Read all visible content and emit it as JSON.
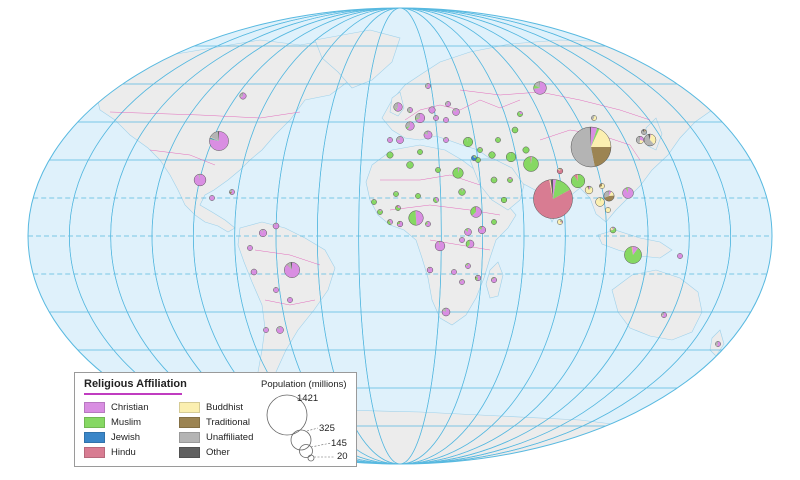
{
  "legend": {
    "title": "Religious Affiliation",
    "items": [
      {
        "label": "Christian",
        "color": "#d98ee2"
      },
      {
        "label": "Muslim",
        "color": "#86d863"
      },
      {
        "label": "Jewish",
        "color": "#3a86c8"
      },
      {
        "label": "Hindu",
        "color": "#d87c92"
      },
      {
        "label": "Buddhist",
        "color": "#fbefb0"
      },
      {
        "label": "Traditional",
        "color": "#9c8452"
      },
      {
        "label": "Unaffiliated",
        "color": "#b4b4b4"
      },
      {
        "label": "Other",
        "color": "#606060"
      }
    ],
    "population": {
      "title": "Population (millions)",
      "values": [
        "1421",
        "325",
        "145",
        "20"
      ]
    }
  },
  "colors": {
    "ocean": "#dff1fb",
    "land": "#ececec",
    "graticule": "#58b9e0",
    "border": "#e04cb0"
  },
  "pies": [
    {
      "name": "china",
      "pop": 1421,
      "shares": [
        0.05,
        0.02,
        0,
        0,
        0.18,
        0.22,
        0.52,
        0.01
      ]
    },
    {
      "name": "india",
      "pop": 1360,
      "shares": [
        0.025,
        0.145,
        0,
        0.8,
        0.01,
        0,
        0,
        0.02
      ]
    },
    {
      "name": "usa",
      "pop": 325,
      "shares": [
        0.78,
        0.01,
        0.02,
        0,
        0.01,
        0,
        0.16,
        0.02
      ]
    },
    {
      "name": "indonesia",
      "pop": 260,
      "shares": [
        0.1,
        0.87,
        0,
        0.02,
        0.01,
        0,
        0,
        0
      ]
    },
    {
      "name": "brazil",
      "pop": 210,
      "shares": [
        0.88,
        0,
        0,
        0,
        0,
        0.01,
        0.08,
        0.03
      ]
    },
    {
      "name": "pakistan",
      "pop": 200,
      "shares": [
        0.02,
        0.96,
        0,
        0.02,
        0,
        0,
        0,
        0
      ]
    },
    {
      "name": "nigeria",
      "pop": 190,
      "shares": [
        0.49,
        0.49,
        0,
        0,
        0,
        0.01,
        0.01,
        0
      ]
    },
    {
      "name": "bangladesh",
      "pop": 165,
      "shares": [
        0,
        0.9,
        0,
        0.09,
        0.01,
        0,
        0,
        0
      ]
    },
    {
      "name": "russia",
      "pop": 145,
      "shares": [
        0.73,
        0.1,
        0,
        0,
        0,
        0,
        0.16,
        0.01
      ]
    },
    {
      "name": "mexico",
      "pop": 125,
      "shares": [
        0.95,
        0,
        0,
        0,
        0,
        0,
        0.05,
        0
      ]
    },
    {
      "name": "japan",
      "pop": 127,
      "shares": [
        0.02,
        0,
        0,
        0,
        0.36,
        0,
        0.57,
        0.05
      ]
    },
    {
      "name": "ethiopia",
      "pop": 105,
      "shares": [
        0.63,
        0.34,
        0,
        0,
        0,
        0.03,
        0,
        0
      ]
    },
    {
      "name": "philippines",
      "pop": 105,
      "shares": [
        0.93,
        0.05,
        0,
        0,
        0,
        0.01,
        0.01,
        0
      ]
    },
    {
      "name": "egypt",
      "pop": 98,
      "shares": [
        0.05,
        0.95,
        0,
        0,
        0,
        0,
        0,
        0
      ]
    },
    {
      "name": "vietnam",
      "pop": 95,
      "shares": [
        0.08,
        0,
        0,
        0,
        0.16,
        0.45,
        0.3,
        0.01
      ]
    },
    {
      "name": "dr-congo",
      "pop": 85,
      "shares": [
        0.96,
        0.02,
        0,
        0,
        0,
        0.01,
        0.01,
        0
      ]
    },
    {
      "name": "iran",
      "pop": 82,
      "shares": [
        0,
        0.99,
        0,
        0,
        0,
        0,
        0.01,
        0
      ]
    },
    {
      "name": "turkey",
      "pop": 80,
      "shares": [
        0,
        0.98,
        0,
        0,
        0,
        0,
        0.02,
        0
      ]
    },
    {
      "name": "germany",
      "pop": 82,
      "shares": [
        0.68,
        0.06,
        0,
        0,
        0,
        0,
        0.25,
        0.01
      ]
    },
    {
      "name": "thailand",
      "pop": 69,
      "shares": [
        0.01,
        0.05,
        0,
        0,
        0.93,
        0,
        0.01,
        0
      ]
    },
    {
      "name": "uk",
      "pop": 66,
      "shares": [
        0.6,
        0.05,
        0,
        0.01,
        0,
        0,
        0.33,
        0.01
      ]
    },
    {
      "name": "france",
      "pop": 65,
      "shares": [
        0.62,
        0.08,
        0.01,
        0,
        0,
        0,
        0.28,
        0.01
      ]
    },
    {
      "name": "italy",
      "pop": 60,
      "shares": [
        0.83,
        0.04,
        0,
        0,
        0,
        0,
        0.12,
        0.01
      ]
    },
    {
      "name": "south-africa",
      "pop": 57,
      "shares": [
        0.82,
        0.02,
        0,
        0.01,
        0,
        0,
        0.15,
        0
      ]
    },
    {
      "name": "tanzania",
      "pop": 57,
      "shares": [
        0.6,
        0.35,
        0,
        0,
        0,
        0.02,
        0.03,
        0
      ]
    },
    {
      "name": "myanmar",
      "pop": 54,
      "shares": [
        0.08,
        0.04,
        0,
        0,
        0.8,
        0.06,
        0,
        0.02
      ]
    },
    {
      "name": "kenya",
      "pop": 50,
      "shares": [
        0.84,
        0.1,
        0,
        0,
        0,
        0.03,
        0.03,
        0
      ]
    },
    {
      "name": "south-korea",
      "pop": 51,
      "shares": [
        0.29,
        0,
        0,
        0,
        0.23,
        0,
        0.46,
        0.02
      ]
    },
    {
      "name": "colombia",
      "pop": 49,
      "shares": [
        0.93,
        0,
        0,
        0,
        0,
        0,
        0.07,
        0
      ]
    },
    {
      "name": "spain",
      "pop": 46,
      "shares": [
        0.78,
        0.02,
        0,
        0,
        0,
        0,
        0.2,
        0
      ]
    },
    {
      "name": "argentina",
      "pop": 44,
      "shares": [
        0.86,
        0.01,
        0.01,
        0,
        0,
        0,
        0.12,
        0
      ]
    },
    {
      "name": "uganda",
      "pop": 44,
      "shares": [
        0.86,
        0.12,
        0,
        0,
        0,
        0.01,
        0.01,
        0
      ]
    },
    {
      "name": "algeria",
      "pop": 42,
      "shares": [
        0,
        0.99,
        0,
        0,
        0,
        0,
        0.01,
        0
      ]
    },
    {
      "name": "sudan",
      "pop": 41,
      "shares": [
        0.05,
        0.91,
        0,
        0,
        0,
        0.03,
        0.01,
        0
      ]
    },
    {
      "name": "iraq",
      "pop": 39,
      "shares": [
        0.01,
        0.99,
        0,
        0,
        0,
        0,
        0,
        0
      ]
    },
    {
      "name": "poland",
      "pop": 38,
      "shares": [
        0.94,
        0,
        0,
        0,
        0,
        0,
        0.06,
        0
      ]
    },
    {
      "name": "canada",
      "pop": 37,
      "shares": [
        0.69,
        0.02,
        0.01,
        0.01,
        0.01,
        0,
        0.24,
        0.02
      ]
    },
    {
      "name": "morocco",
      "pop": 36,
      "shares": [
        0,
        0.99,
        0,
        0,
        0,
        0,
        0.01,
        0
      ]
    },
    {
      "name": "afghanistan",
      "pop": 36,
      "shares": [
        0,
        1,
        0,
        0,
        0,
        0,
        0,
        0
      ]
    },
    {
      "name": "saudi-arabia",
      "pop": 33,
      "shares": [
        0.04,
        0.93,
        0,
        0.01,
        0,
        0,
        0.02,
        0
      ]
    },
    {
      "name": "peru",
      "pop": 32,
      "shares": [
        0.95,
        0,
        0,
        0,
        0,
        0,
        0.05,
        0
      ]
    },
    {
      "name": "venezuela",
      "pop": 32,
      "shares": [
        0.89,
        0,
        0,
        0,
        0,
        0,
        0.11,
        0
      ]
    },
    {
      "name": "malaysia",
      "pop": 32,
      "shares": [
        0.09,
        0.63,
        0,
        0.06,
        0.18,
        0.02,
        0.01,
        0.01
      ]
    },
    {
      "name": "uzbekistan",
      "pop": 32,
      "shares": [
        0.02,
        0.96,
        0,
        0,
        0,
        0,
        0.02,
        0
      ]
    },
    {
      "name": "mozambique",
      "pop": 29,
      "shares": [
        0.56,
        0.18,
        0,
        0,
        0,
        0.08,
        0.18,
        0
      ]
    },
    {
      "name": "nepal",
      "pop": 29,
      "shares": [
        0.01,
        0.04,
        0,
        0.81,
        0.1,
        0.04,
        0,
        0
      ]
    },
    {
      "name": "ghana",
      "pop": 29,
      "shares": [
        0.74,
        0.16,
        0,
        0,
        0,
        0.08,
        0.02,
        0
      ]
    },
    {
      "name": "yemen",
      "pop": 28,
      "shares": [
        0,
        1,
        0,
        0,
        0,
        0,
        0,
        0
      ]
    },
    {
      "name": "angola",
      "pop": 30,
      "shares": [
        0.9,
        0,
        0,
        0,
        0,
        0.05,
        0.05,
        0
      ]
    },
    {
      "name": "madagascar",
      "pop": 26,
      "shares": [
        0.85,
        0.03,
        0,
        0,
        0,
        0.05,
        0.07,
        0
      ]
    },
    {
      "name": "australia",
      "pop": 25,
      "shares": [
        0.67,
        0.02,
        0,
        0.01,
        0.03,
        0,
        0.25,
        0.02
      ]
    },
    {
      "name": "cameroon",
      "pop": 24,
      "shares": [
        0.7,
        0.18,
        0,
        0,
        0,
        0.03,
        0.09,
        0
      ]
    },
    {
      "name": "north-korea",
      "pop": 25,
      "shares": [
        0.02,
        0,
        0,
        0,
        0.02,
        0.12,
        0.71,
        0.13
      ]
    },
    {
      "name": "cote-divoire",
      "pop": 24,
      "shares": [
        0.44,
        0.37,
        0,
        0,
        0,
        0.11,
        0.08,
        0
      ]
    },
    {
      "name": "niger",
      "pop": 21,
      "shares": [
        0.01,
        0.98,
        0,
        0,
        0,
        0.01,
        0,
        0
      ]
    },
    {
      "name": "sri-lanka",
      "pop": 21,
      "shares": [
        0.07,
        0.1,
        0,
        0.13,
        0.7,
        0,
        0,
        0
      ]
    },
    {
      "name": "mali",
      "pop": 19,
      "shares": [
        0.03,
        0.93,
        0,
        0,
        0,
        0.02,
        0.02,
        0
      ]
    },
    {
      "name": "kazakhstan",
      "pop": 18,
      "shares": [
        0.24,
        0.7,
        0,
        0,
        0,
        0,
        0.06,
        0
      ]
    },
    {
      "name": "chile",
      "pop": 18,
      "shares": [
        0.89,
        0,
        0,
        0,
        0,
        0,
        0.1,
        0.01
      ]
    },
    {
      "name": "syria",
      "pop": 18,
      "shares": [
        0.05,
        0.93,
        0,
        0,
        0,
        0,
        0.02,
        0
      ]
    },
    {
      "name": "romania",
      "pop": 19,
      "shares": [
        0.99,
        0,
        0,
        0,
        0,
        0,
        0.01,
        0
      ]
    },
    {
      "name": "netherlands",
      "pop": 17,
      "shares": [
        0.5,
        0.06,
        0,
        0.01,
        0,
        0,
        0.42,
        0.01
      ]
    },
    {
      "name": "burkina-faso",
      "pop": 19,
      "shares": [
        0.23,
        0.62,
        0,
        0,
        0,
        0.13,
        0.02,
        0
      ]
    },
    {
      "name": "zambia",
      "pop": 17,
      "shares": [
        0.97,
        0.01,
        0,
        0,
        0,
        0.01,
        0.01,
        0
      ]
    },
    {
      "name": "malawi",
      "pop": 18,
      "shares": [
        0.83,
        0.13,
        0,
        0,
        0,
        0.02,
        0.02,
        0
      ]
    },
    {
      "name": "guatemala",
      "pop": 17,
      "shares": [
        0.95,
        0,
        0,
        0,
        0,
        0,
        0.05,
        0
      ]
    },
    {
      "name": "ecuador",
      "pop": 17,
      "shares": [
        0.94,
        0,
        0,
        0,
        0,
        0,
        0.06,
        0
      ]
    },
    {
      "name": "cambodia",
      "pop": 16,
      "shares": [
        0.01,
        0.02,
        0,
        0,
        0.97,
        0,
        0,
        0
      ]
    },
    {
      "name": "chad",
      "pop": 15,
      "shares": [
        0.4,
        0.55,
        0,
        0,
        0,
        0.01,
        0.04,
        0
      ]
    },
    {
      "name": "somalia",
      "pop": 15,
      "shares": [
        0,
        1,
        0,
        0,
        0,
        0,
        0,
        0
      ]
    },
    {
      "name": "zimbabwe",
      "pop": 17,
      "shares": [
        0.87,
        0.01,
        0,
        0,
        0,
        0.04,
        0.08,
        0
      ]
    },
    {
      "name": "senegal",
      "pop": 16,
      "shares": [
        0.04,
        0.96,
        0,
        0,
        0,
        0,
        0,
        0
      ]
    },
    {
      "name": "guinea",
      "pop": 13,
      "shares": [
        0.11,
        0.84,
        0,
        0,
        0,
        0.03,
        0.02,
        0
      ]
    },
    {
      "name": "rwanda",
      "pop": 12,
      "shares": [
        0.93,
        0.02,
        0,
        0,
        0,
        0,
        0.05,
        0
      ]
    },
    {
      "name": "tunisia",
      "pop": 12,
      "shares": [
        0,
        1,
        0,
        0,
        0,
        0,
        0,
        0
      ]
    },
    {
      "name": "bolivia",
      "pop": 11,
      "shares": [
        0.93,
        0,
        0,
        0,
        0,
        0,
        0.05,
        0.02
      ]
    },
    {
      "name": "cuba",
      "pop": 11,
      "shares": [
        0.59,
        0,
        0,
        0,
        0,
        0.17,
        0.23,
        0.01
      ]
    },
    {
      "name": "greece",
      "pop": 11,
      "shares": [
        0.88,
        0.05,
        0,
        0,
        0,
        0,
        0.06,
        0.01
      ]
    },
    {
      "name": "sweden",
      "pop": 10,
      "shares": [
        0.67,
        0.05,
        0,
        0,
        0,
        0,
        0.27,
        0.01
      ]
    },
    {
      "name": "portugal",
      "pop": 10,
      "shares": [
        0.94,
        0,
        0,
        0,
        0,
        0,
        0.05,
        0.01
      ]
    },
    {
      "name": "jordan",
      "pop": 10,
      "shares": [
        0.02,
        0.97,
        0,
        0,
        0,
        0,
        0.01,
        0
      ]
    },
    {
      "name": "azerbaijan",
      "pop": 10,
      "shares": [
        0.03,
        0.97,
        0,
        0,
        0,
        0,
        0,
        0
      ]
    },
    {
      "name": "uae",
      "pop": 10,
      "shares": [
        0.13,
        0.76,
        0,
        0.07,
        0.02,
        0,
        0.01,
        0.01
      ]
    },
    {
      "name": "hungary",
      "pop": 10,
      "shares": [
        0.81,
        0,
        0,
        0,
        0,
        0,
        0.18,
        0.01
      ]
    },
    {
      "name": "belarus",
      "pop": 9,
      "shares": [
        0.71,
        0,
        0,
        0,
        0,
        0,
        0.29,
        0
      ]
    },
    {
      "name": "israel",
      "pop": 9,
      "shares": [
        0.02,
        0.19,
        0.75,
        0,
        0,
        0,
        0.03,
        0.01
      ]
    },
    {
      "name": "papua-new-guinea",
      "pop": 8,
      "shares": [
        0.99,
        0,
        0,
        0,
        0,
        0.01,
        0,
        0
      ]
    },
    {
      "name": "new-zealand",
      "pop": 5,
      "shares": [
        0.57,
        0.01,
        0,
        0.02,
        0.02,
        0,
        0.37,
        0.01
      ]
    },
    {
      "name": "laos",
      "pop": 7,
      "shares": [
        0.02,
        0,
        0,
        0,
        0.66,
        0.31,
        0.01,
        0
      ]
    },
    {
      "name": "libya",
      "pop": 7,
      "shares": [
        0.03,
        0.96,
        0,
        0,
        0,
        0,
        0.01,
        0
      ]
    },
    {
      "name": "paraguay",
      "pop": 7,
      "shares": [
        0.96,
        0,
        0,
        0,
        0,
        0,
        0.03,
        0.01
      ]
    },
    {
      "name": "mongolia",
      "pop": 3,
      "shares": [
        0.02,
        0.03,
        0,
        0,
        0.55,
        0.04,
        0.36,
        0
      ]
    },
    {
      "name": "ukraine",
      "pop": 44,
      "shares": [
        0.84,
        0.01,
        0,
        0,
        0,
        0,
        0.15,
        0
      ]
    }
  ]
}
